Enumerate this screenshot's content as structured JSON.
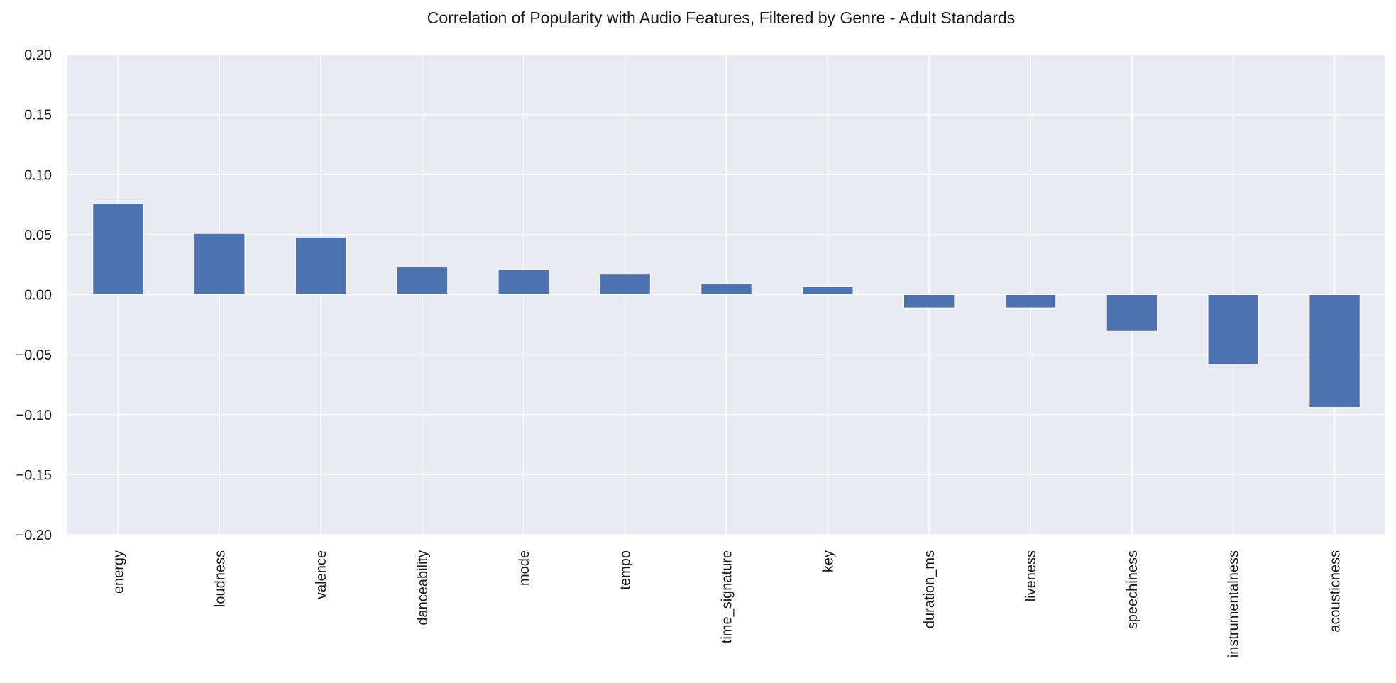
{
  "chart_data": {
    "type": "bar",
    "title": "Correlation of Popularity with Audio Features, Filtered by Genre - Adult Standards",
    "xlabel": "",
    "ylabel": "",
    "categories": [
      "energy",
      "loudness",
      "valence",
      "danceability",
      "mode",
      "tempo",
      "time_signature",
      "key",
      "duration_ms",
      "liveness",
      "speechiness",
      "instrumentalness",
      "acousticness"
    ],
    "values": [
      0.076,
      0.051,
      0.048,
      0.023,
      0.021,
      0.017,
      0.009,
      0.007,
      -0.011,
      -0.011,
      -0.03,
      -0.058,
      -0.094
    ],
    "ylim": [
      -0.2,
      0.2
    ],
    "yticks": [
      "0.20",
      "0.15",
      "0.10",
      "0.05",
      "0.00",
      "−0.05",
      "−0.10",
      "−0.15",
      "−0.20"
    ],
    "ytick_values": [
      0.2,
      0.15,
      0.1,
      0.05,
      0.0,
      -0.05,
      -0.1,
      -0.15,
      -0.2
    ],
    "grid": true,
    "legend": "none",
    "bar_color": "#4c72b0",
    "background_color": "#eaeaf2"
  }
}
